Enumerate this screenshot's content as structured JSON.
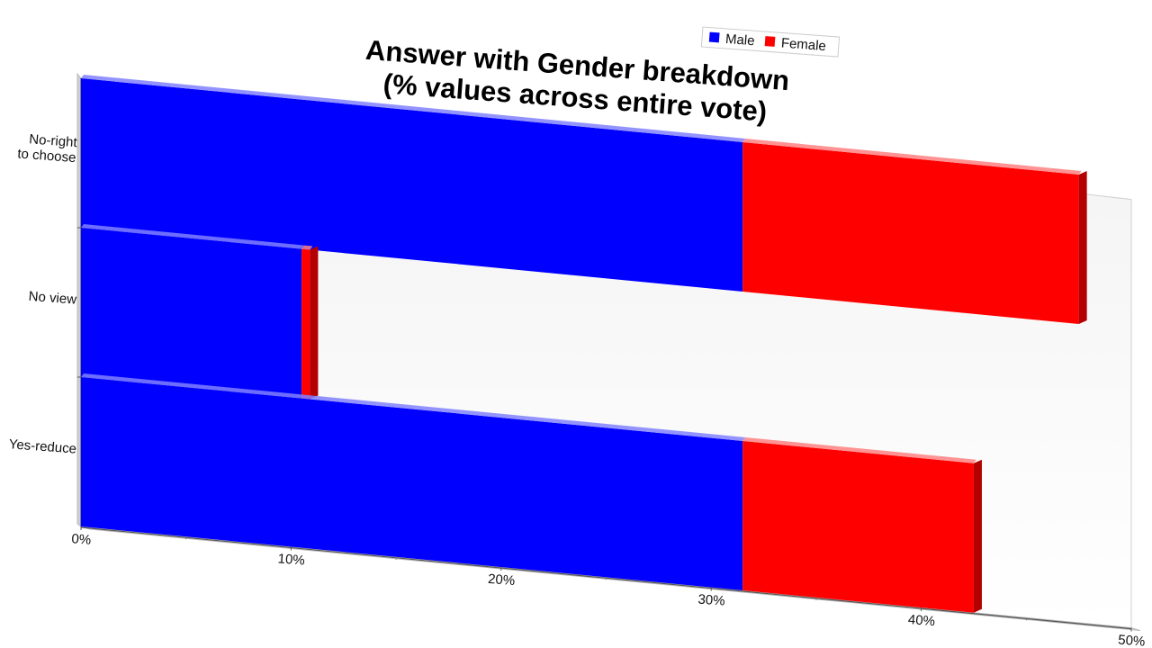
{
  "chart_data": {
    "type": "bar",
    "orientation": "horizontal",
    "stacked": true,
    "title": "Answer with Gender breakdown\n(% values across entire vote)",
    "xlabel": "",
    "ylabel": "",
    "categories": [
      "No-right\nto choose",
      "No view",
      "Yes-reduce"
    ],
    "series": [
      {
        "name": "Male",
        "values": [
          31.5,
          10.5,
          31.5
        ]
      },
      {
        "name": "Female",
        "values": [
          16,
          0.4,
          11
        ]
      }
    ],
    "x_ticks": [
      "0%",
      "10%",
      "20%",
      "30%",
      "40%",
      "50%"
    ],
    "xlim": [
      0,
      50
    ],
    "grid": false,
    "legend": "top-right",
    "colors": {
      "Male": "#0000ff",
      "Female": "#ff0000"
    }
  }
}
